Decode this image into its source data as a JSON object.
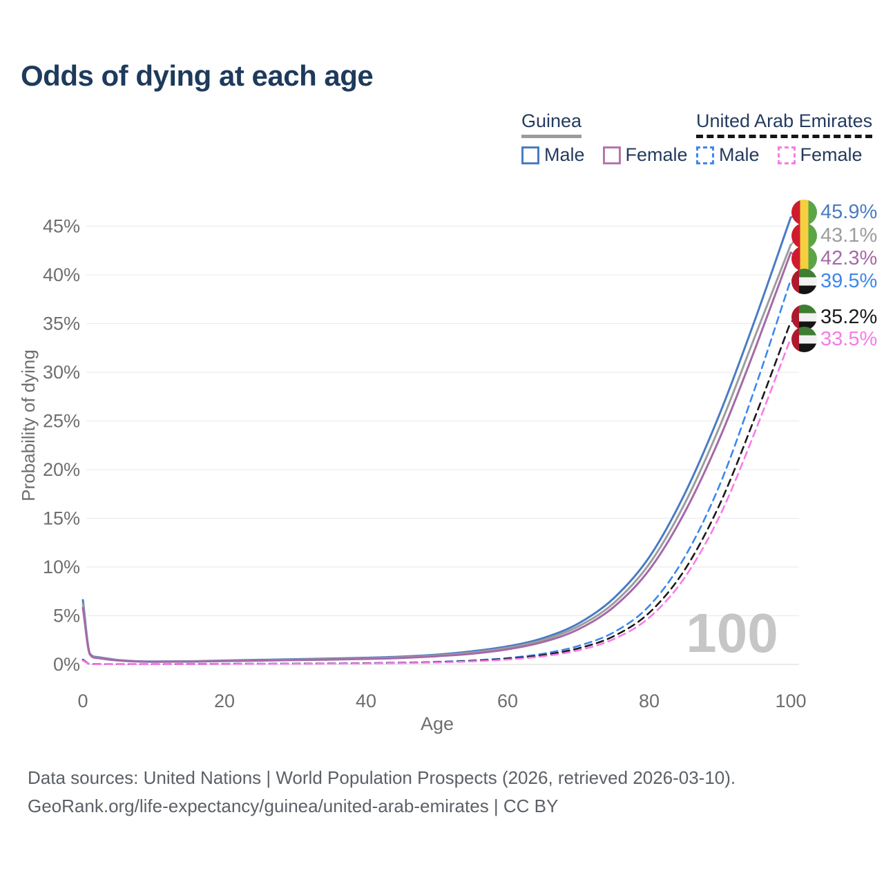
{
  "title": "Odds of dying at each age",
  "legend": {
    "groups": [
      {
        "name": "Guinea",
        "underline_color": "#9b9b9b",
        "underline_style": "solid",
        "items": [
          {
            "label": "Male",
            "color": "#4a7bc4",
            "dash": false
          },
          {
            "label": "Female",
            "color": "#b277b0",
            "dash": false
          }
        ]
      },
      {
        "name": "United Arab Emirates",
        "underline_color": "#151515",
        "underline_style": "dashed",
        "items": [
          {
            "label": "Male",
            "color": "#3c87f0",
            "dash": true
          },
          {
            "label": "Female",
            "color": "#f97ae8",
            "dash": true
          }
        ]
      }
    ]
  },
  "end_labels": [
    {
      "value": "45.9%",
      "country": "guinea",
      "color": "#4a7bc4"
    },
    {
      "value": "43.1%",
      "country": "guinea",
      "color": "#9d9d9d"
    },
    {
      "value": "42.3%",
      "country": "guinea",
      "color": "#a569a8"
    },
    {
      "value": "39.5%",
      "country": "uae",
      "color": "#3c87f0"
    },
    {
      "value": "35.2%",
      "country": "uae",
      "color": "#1a1a1a"
    },
    {
      "value": "33.5%",
      "country": "uae",
      "color": "#f97ae8"
    }
  ],
  "watermark": "100",
  "footer": {
    "line1": "Data sources: United Nations | World Population Prospects (2026, retrieved 2026-03-10).",
    "line2": "GeoRank.org/life-expectancy/guinea/united-arab-emirates | CC BY"
  },
  "chart_data": {
    "type": "line",
    "title": "Odds of dying at each age",
    "xlabel": "Age",
    "ylabel": "Probability of dying",
    "xlim": [
      0,
      100
    ],
    "ylim": [
      0,
      46.5
    ],
    "x_ticks": [
      0,
      20,
      40,
      60,
      80,
      100
    ],
    "y_ticks": [
      0,
      5,
      10,
      15,
      20,
      25,
      30,
      35,
      40,
      45
    ],
    "grid": "horizontal",
    "legend_position": "top-right",
    "x": [
      0,
      1,
      2,
      5,
      10,
      15,
      20,
      25,
      30,
      35,
      40,
      45,
      50,
      55,
      60,
      65,
      70,
      75,
      80,
      85,
      90,
      95,
      100
    ],
    "series": [
      {
        "name": "Guinea Male",
        "color": "#4a7bc4",
        "style": "solid",
        "values": [
          6.6,
          1.1,
          0.75,
          0.45,
          0.3,
          0.32,
          0.4,
          0.47,
          0.53,
          0.6,
          0.68,
          0.8,
          1.0,
          1.35,
          1.85,
          2.7,
          4.2,
          6.8,
          11.0,
          17.5,
          25.8,
          35.5,
          45.9
        ]
      },
      {
        "name": "Guinea Both sexes",
        "color": "#9d9d9d",
        "style": "solid",
        "values": [
          6.2,
          1.05,
          0.7,
          0.42,
          0.28,
          0.3,
          0.36,
          0.42,
          0.48,
          0.54,
          0.62,
          0.73,
          0.92,
          1.22,
          1.7,
          2.5,
          3.9,
          6.3,
          10.3,
          16.5,
          24.5,
          33.8,
          43.1
        ]
      },
      {
        "name": "Guinea Female",
        "color": "#a569a8",
        "style": "solid",
        "values": [
          5.8,
          1.0,
          0.65,
          0.4,
          0.26,
          0.28,
          0.33,
          0.38,
          0.44,
          0.49,
          0.56,
          0.66,
          0.84,
          1.1,
          1.55,
          2.3,
          3.6,
          5.9,
          9.7,
          15.6,
          23.3,
          32.5,
          42.3
        ]
      },
      {
        "name": "United Arab Emirates Male",
        "color": "#3c87f0",
        "style": "dashed",
        "values": [
          0.5,
          0.05,
          0.03,
          0.02,
          0.02,
          0.04,
          0.06,
          0.07,
          0.08,
          0.1,
          0.13,
          0.18,
          0.26,
          0.4,
          0.65,
          1.1,
          1.9,
          3.3,
          6.0,
          11.0,
          18.5,
          28.5,
          39.5
        ]
      },
      {
        "name": "United Arab Emirates Both sexes",
        "color": "#1a1a1a",
        "style": "dashed",
        "values": [
          0.45,
          0.04,
          0.03,
          0.02,
          0.02,
          0.03,
          0.05,
          0.06,
          0.07,
          0.09,
          0.12,
          0.16,
          0.23,
          0.36,
          0.58,
          0.95,
          1.65,
          2.9,
          5.3,
          9.7,
          16.5,
          25.5,
          35.2
        ]
      },
      {
        "name": "United Arab Emirates Female",
        "color": "#f97ae8",
        "style": "dashed",
        "values": [
          0.4,
          0.04,
          0.02,
          0.02,
          0.02,
          0.03,
          0.04,
          0.05,
          0.06,
          0.08,
          0.1,
          0.14,
          0.2,
          0.31,
          0.5,
          0.83,
          1.45,
          2.6,
          4.8,
          8.9,
          15.3,
          24.0,
          33.5
        ]
      }
    ]
  }
}
